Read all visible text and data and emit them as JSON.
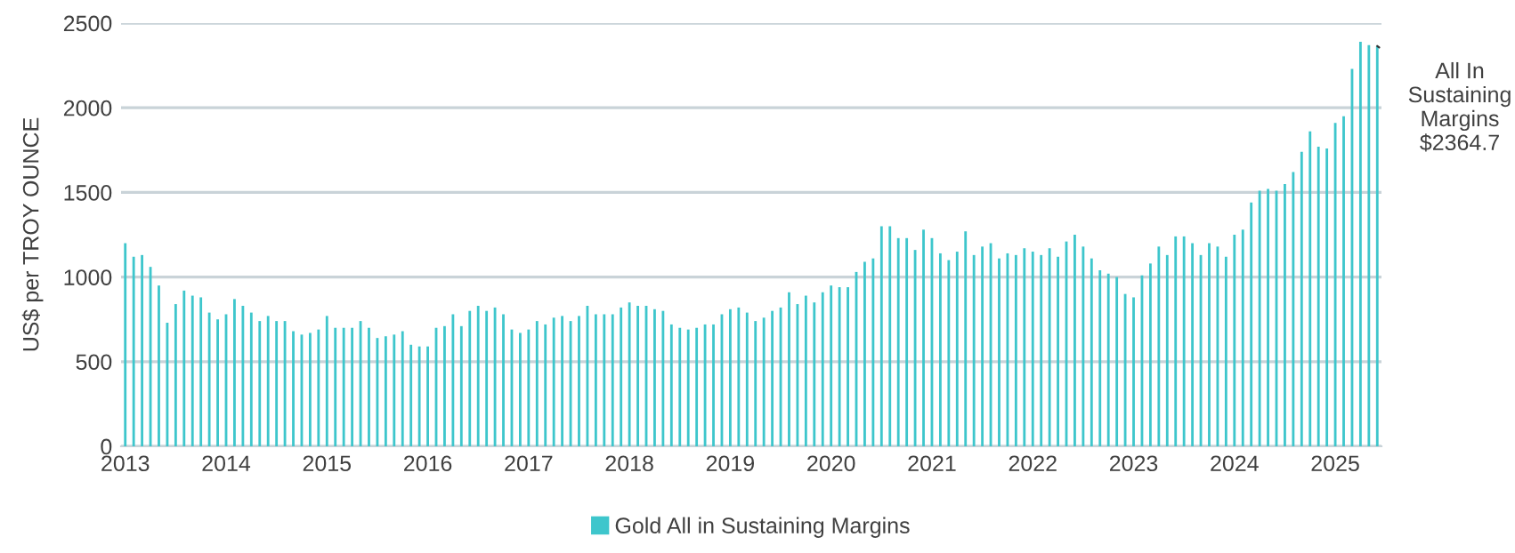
{
  "chart_data": {
    "type": "bar",
    "ylabel": "US$ per TROY OUNCE",
    "categories": [
      "2013",
      null,
      null,
      null,
      null,
      null,
      null,
      null,
      null,
      null,
      null,
      null,
      "2014",
      null,
      null,
      null,
      null,
      null,
      null,
      null,
      null,
      null,
      null,
      null,
      "2015",
      null,
      null,
      null,
      null,
      null,
      null,
      null,
      null,
      null,
      null,
      null,
      "2016",
      null,
      null,
      null,
      null,
      null,
      null,
      null,
      null,
      null,
      null,
      null,
      "2017",
      null,
      null,
      null,
      null,
      null,
      null,
      null,
      null,
      null,
      null,
      null,
      "2018",
      null,
      null,
      null,
      null,
      null,
      null,
      null,
      null,
      null,
      null,
      null,
      "2019",
      null,
      null,
      null,
      null,
      null,
      null,
      null,
      null,
      null,
      null,
      null,
      "2020",
      null,
      null,
      null,
      null,
      null,
      null,
      null,
      null,
      null,
      null,
      null,
      "2021",
      null,
      null,
      null,
      null,
      null,
      null,
      null,
      null,
      null,
      null,
      null,
      "2022",
      null,
      null,
      null,
      null,
      null,
      null,
      null,
      null,
      null,
      null,
      null,
      "2023",
      null,
      null,
      null,
      null,
      null,
      null,
      null,
      null,
      null,
      null,
      null,
      "2024",
      null,
      null,
      null,
      null,
      null,
      null,
      null,
      null,
      null,
      null,
      null,
      "2025",
      null,
      null,
      null,
      null,
      null
    ],
    "series": [
      {
        "name": "Gold All in Sustaining Margins",
        "color": "#3ec6cc",
        "values": [
          1200,
          1120,
          1130,
          1060,
          950,
          730,
          840,
          920,
          890,
          880,
          790,
          750,
          780,
          870,
          830,
          790,
          740,
          770,
          740,
          740,
          680,
          660,
          670,
          690,
          770,
          700,
          700,
          700,
          740,
          700,
          640,
          650,
          660,
          680,
          600,
          590,
          590,
          700,
          710,
          780,
          710,
          800,
          830,
          800,
          820,
          780,
          690,
          670,
          690,
          740,
          720,
          760,
          770,
          740,
          770,
          830,
          780,
          780,
          780,
          820,
          850,
          830,
          830,
          810,
          800,
          720,
          700,
          690,
          700,
          720,
          720,
          780,
          810,
          820,
          790,
          740,
          760,
          800,
          820,
          910,
          840,
          890,
          850,
          910,
          950,
          940,
          940,
          1030,
          1090,
          1110,
          1300,
          1300,
          1230,
          1230,
          1160,
          1280,
          1230,
          1140,
          1100,
          1150,
          1270,
          1130,
          1180,
          1200,
          1110,
          1140,
          1130,
          1170,
          1150,
          1130,
          1170,
          1120,
          1210,
          1250,
          1180,
          1110,
          1040,
          1020,
          1000,
          900,
          880,
          1010,
          1080,
          1180,
          1130,
          1240,
          1240,
          1200,
          1130,
          1200,
          1180,
          1120,
          1250,
          1280,
          1440,
          1510,
          1520,
          1510,
          1550,
          1620,
          1740,
          1860,
          1770,
          1760,
          1910,
          1950,
          2230,
          2390,
          2370,
          2364.7
        ]
      }
    ],
    "ylim": [
      0,
      2500
    ],
    "yticks": [
      0,
      500,
      1000,
      1500,
      2000,
      2500
    ],
    "grid": "y",
    "legend": "bottom",
    "annotations": [
      "All In\nSustaining\nMargins\n$2364.7"
    ]
  }
}
